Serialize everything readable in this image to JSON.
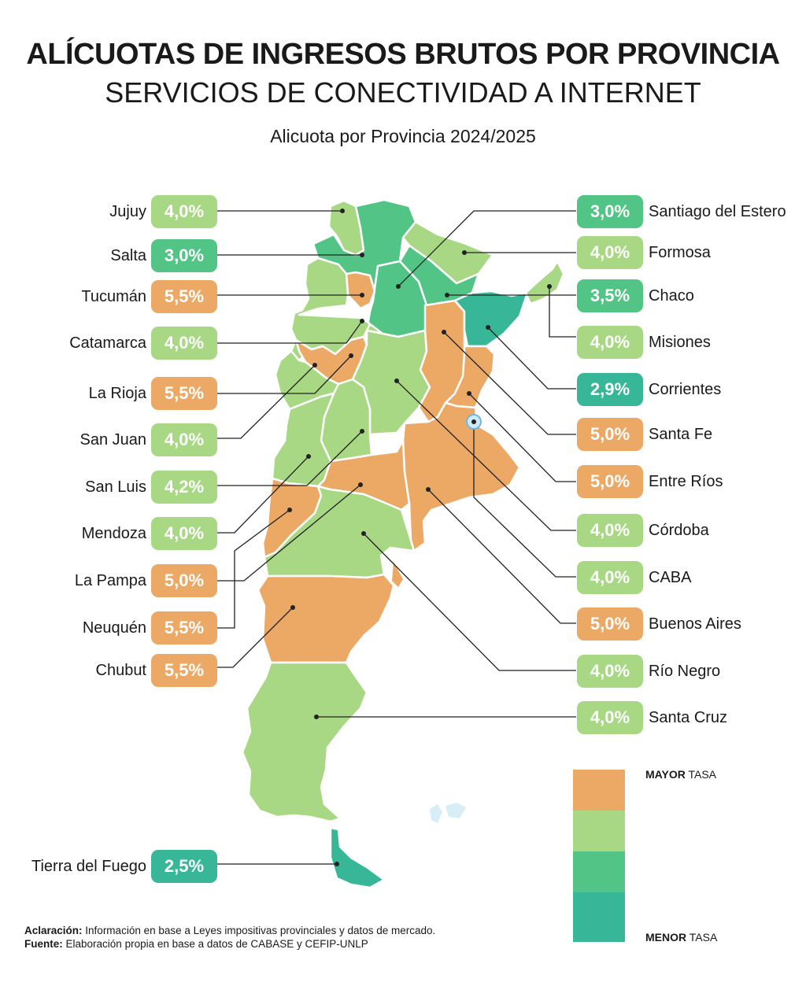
{
  "header": {
    "title": "ALÍCUOTAS DE INGRESOS BRUTOS POR PROVINCIA",
    "subtitle": "SERVICIOS DE CONECTIVIDAD A INTERNET",
    "period": "Alicuota por Provincia 2024/2025"
  },
  "colors": {
    "orange": "#ECA865",
    "light_green": "#A8D883",
    "green": "#52C486",
    "teal": "#37B797",
    "leader": "#222222"
  },
  "provinces_left": [
    {
      "name": "Jujuy",
      "rate": "4,0%",
      "tier": "light_green"
    },
    {
      "name": "Salta",
      "rate": "3,0%",
      "tier": "green"
    },
    {
      "name": "Tucumán",
      "rate": "5,5%",
      "tier": "orange"
    },
    {
      "name": "Catamarca",
      "rate": "4,0%",
      "tier": "light_green"
    },
    {
      "name": "La Rioja",
      "rate": "5,5%",
      "tier": "orange"
    },
    {
      "name": "San Juan",
      "rate": "4,0%",
      "tier": "light_green"
    },
    {
      "name": "San Luis",
      "rate": "4,2%",
      "tier": "light_green"
    },
    {
      "name": "Mendoza",
      "rate": "4,0%",
      "tier": "light_green"
    },
    {
      "name": "La Pampa",
      "rate": "5,0%",
      "tier": "orange"
    },
    {
      "name": "Neuquén",
      "rate": "5,5%",
      "tier": "orange"
    },
    {
      "name": "Chubut",
      "rate": "5,5%",
      "tier": "orange"
    },
    {
      "name": "Tierra del Fuego",
      "rate": "2,5%",
      "tier": "teal"
    }
  ],
  "provinces_right": [
    {
      "name": "Santiago del Estero",
      "rate": "3,0%",
      "tier": "green"
    },
    {
      "name": "Formosa",
      "rate": "4,0%",
      "tier": "light_green"
    },
    {
      "name": "Chaco",
      "rate": "3,5%",
      "tier": "green"
    },
    {
      "name": "Misiones",
      "rate": "4,0%",
      "tier": "light_green"
    },
    {
      "name": "Corrientes",
      "rate": "2,9%",
      "tier": "teal"
    },
    {
      "name": "Santa Fe",
      "rate": "5,0%",
      "tier": "orange"
    },
    {
      "name": "Entre Ríos",
      "rate": "5,0%",
      "tier": "orange"
    },
    {
      "name": "Córdoba",
      "rate": "4,0%",
      "tier": "light_green"
    },
    {
      "name": "CABA",
      "rate": "4,0%",
      "tier": "light_green"
    },
    {
      "name": "Buenos Aires",
      "rate": "5,0%",
      "tier": "orange"
    },
    {
      "name": "Río Negro",
      "rate": "4,0%",
      "tier": "light_green"
    },
    {
      "name": "Santa Cruz",
      "rate": "4,0%",
      "tier": "light_green"
    }
  ],
  "legend": {
    "top_bold": "MAYOR",
    "top_rest": "TASA",
    "bottom_bold": "MENOR",
    "bottom_rest": "TASA",
    "scale": [
      "orange",
      "light_green",
      "green",
      "teal"
    ]
  },
  "notes": {
    "aclaracion_label": "Aclaración:",
    "aclaracion_text": "Información en base a Leyes impositivas provinciales y datos de mercado.",
    "fuente_label": "Fuente:",
    "fuente_text": "Elaboración propia en base a datos de CABASE y CEFIP-UNLP"
  }
}
